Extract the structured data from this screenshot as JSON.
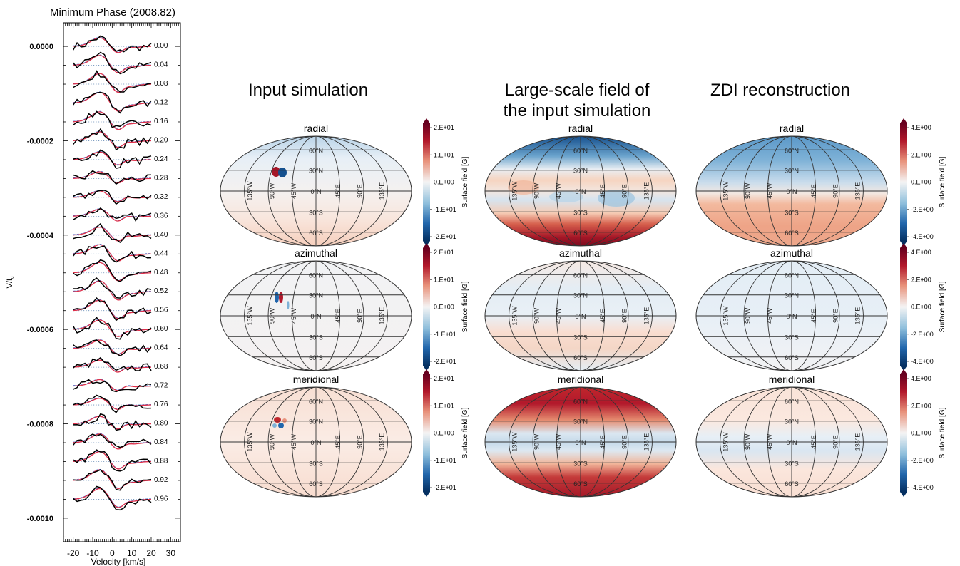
{
  "stokes_panel": {
    "title": "Minimum Phase (2008.82)",
    "ylabel": "V/Ic",
    "ylabel_main": "V/I",
    "ylabel_sub": "c",
    "xlabel": "Velocity [km/s]",
    "xticks": [
      "-20",
      "-10",
      "0",
      "10",
      "20",
      "30"
    ],
    "yticks": [
      "0.0000",
      "-0.0002",
      "-0.0004",
      "-0.0006",
      "-0.0008",
      "-0.0010"
    ],
    "phases": [
      "0.00",
      "0.04",
      "0.08",
      "0.12",
      "0.16",
      "0.20",
      "0.24",
      "0.28",
      "0.32",
      "0.36",
      "0.40",
      "0.44",
      "0.48",
      "0.52",
      "0.56",
      "0.60",
      "0.64",
      "0.68",
      "0.72",
      "0.76",
      "0.80",
      "0.84",
      "0.88",
      "0.92",
      "0.96"
    ]
  },
  "columns": [
    {
      "title_lines": [
        "Input simulation"
      ]
    },
    {
      "title_lines": [
        "Large-scale field of",
        "the input simulation"
      ]
    },
    {
      "title_lines": [
        "ZDI reconstruction"
      ]
    }
  ],
  "row_labels": [
    "radial",
    "azimuthal",
    "meridional"
  ],
  "map_labels": {
    "lat": [
      "60°N",
      "30°N",
      "0°N",
      "30°S",
      "60°S"
    ],
    "lon": [
      "135°W",
      "90°W",
      "45°W",
      "45°E",
      "90°E",
      "135°E"
    ]
  },
  "colorbars": {
    "label": "Surface field [G]",
    "input_ticks": [
      "2.E+01",
      "1.E+01",
      "0.E+00",
      "-1.E+01",
      "-2.E+01"
    ],
    "zdi_ticks": [
      "4.E+00",
      "2.E+00",
      "0.E+00",
      "-2.E+00",
      "-4.E+00"
    ]
  },
  "colors": {
    "positive": "#b2182b",
    "negative": "#2166ac",
    "neutral": "#f2f4f5",
    "observed": "#000000",
    "model": "#e0304a",
    "model_alt": "#3a6fd0"
  },
  "chart_data": [
    {
      "type": "line",
      "title": "Minimum Phase (2008.82)",
      "xlabel": "Velocity [km/s]",
      "ylabel": "V/Ic",
      "xlim": [
        -25,
        35
      ],
      "ylim": [
        -0.00105,
        5e-05
      ],
      "offset_step": -4e-05,
      "series_names": [
        "observed",
        "model"
      ],
      "phases": [
        0.0,
        0.04,
        0.08,
        0.12,
        0.16,
        0.2,
        0.24,
        0.28,
        0.32,
        0.36,
        0.4,
        0.44,
        0.48,
        0.52,
        0.56,
        0.6,
        0.64,
        0.68,
        0.72,
        0.76,
        0.8,
        0.84,
        0.88,
        0.92,
        0.96
      ]
    },
    {
      "type": "heatmap",
      "title": "Input simulation",
      "panels": [
        "radial",
        "azimuthal",
        "meridional"
      ],
      "projection": "Mollweide",
      "colorbar": {
        "label": "Surface field [G]",
        "range": [
          -20,
          20
        ]
      }
    },
    {
      "type": "heatmap",
      "title": "Large-scale field of the input simulation",
      "panels": [
        "radial",
        "azimuthal",
        "meridional"
      ],
      "projection": "Mollweide"
    },
    {
      "type": "heatmap",
      "title": "ZDI reconstruction",
      "panels": [
        "radial",
        "azimuthal",
        "meridional"
      ],
      "projection": "Mollweide",
      "colorbar": {
        "label": "Surface field [G]",
        "range": [
          -4,
          4
        ]
      }
    }
  ]
}
